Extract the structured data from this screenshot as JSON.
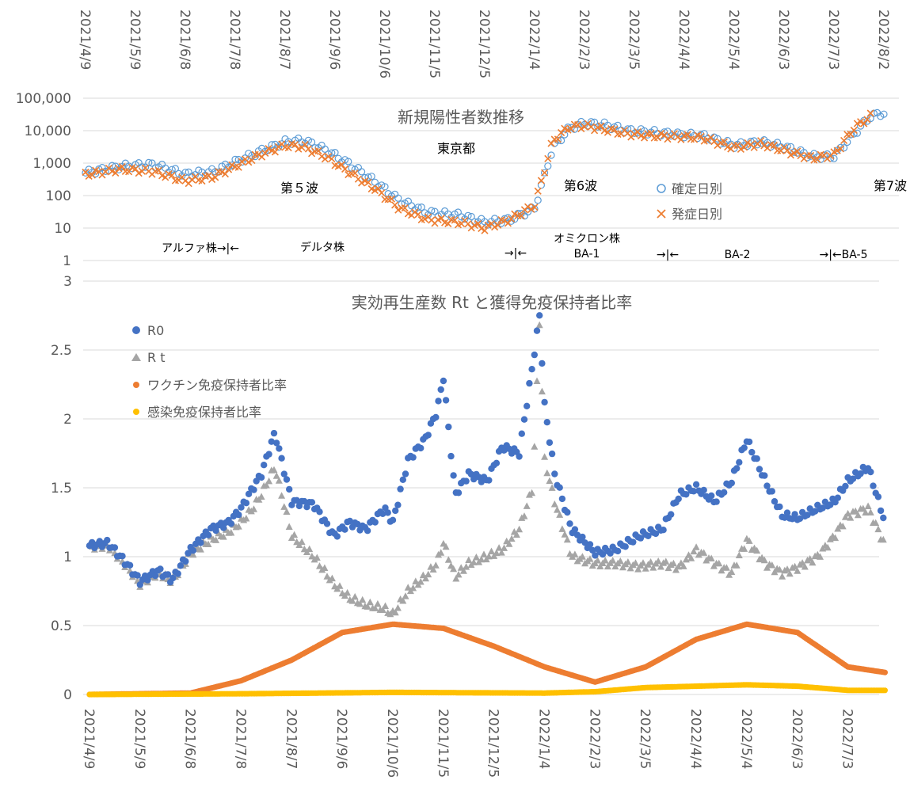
{
  "chart_data": [
    {
      "type": "scatter",
      "title": "新規陽性者数推移",
      "region_label": "東京都",
      "y_scale": "log",
      "ylim": [
        1,
        100000
      ],
      "yticks": [
        "1",
        "10",
        "100",
        "1,000",
        "10,000",
        "100,000"
      ],
      "x_tick_labels": [
        "2021/4/9",
        "2021/5/9",
        "2021/6/8",
        "2021/7/8",
        "2021/8/7",
        "2021/9/6",
        "2021/10/6",
        "2021/11/5",
        "2021/12/5",
        "2022/1/4",
        "2022/2/3",
        "2022/3/5",
        "2022/4/4",
        "2022/5/4",
        "2022/6/3",
        "2022/7/3",
        "2022/8/2"
      ],
      "wave_labels": [
        "第５波",
        "第6波",
        "第7波"
      ],
      "strain_labels": [
        "アルファ株→|←",
        "デルタ株",
        "→|←",
        "オミクロン株",
        "BA-1",
        "→|←",
        "BA-2",
        "→|←BA-5"
      ],
      "legend_position": "right",
      "grid": true,
      "series": [
        {
          "name": "確定日別",
          "marker": "open-circle",
          "color": "#5b9bd5",
          "x": [
            "2021/4/9",
            "2021/5/1",
            "2021/5/20",
            "2021/6/8",
            "2021/6/25",
            "2021/7/10",
            "2021/7/25",
            "2021/8/7",
            "2021/8/18",
            "2021/9/1",
            "2021/9/15",
            "2021/10/1",
            "2021/10/15",
            "2021/11/1",
            "2021/11/20",
            "2021/12/5",
            "2021/12/20",
            "2022/1/4",
            "2022/1/15",
            "2022/1/25",
            "2022/2/3",
            "2022/2/15",
            "2022/3/1",
            "2022/3/15",
            "2022/4/1",
            "2022/4/15",
            "2022/5/4",
            "2022/5/20",
            "2022/6/3",
            "2022/6/20",
            "2022/7/3",
            "2022/7/15",
            "2022/7/25",
            "2022/8/2"
          ],
          "y": [
            500,
            800,
            900,
            450,
            550,
            1200,
            2500,
            4500,
            5000,
            2500,
            900,
            250,
            70,
            30,
            25,
            15,
            18,
            40,
            3000,
            12000,
            17000,
            15000,
            10000,
            9000,
            7500,
            7000,
            3500,
            4500,
            3200,
            1600,
            1600,
            8000,
            28000,
            35000
          ]
        },
        {
          "name": "発症日別",
          "marker": "x",
          "color": "#ed7d31",
          "x": [
            "2021/4/9",
            "2021/5/1",
            "2021/5/20",
            "2021/6/8",
            "2021/6/25",
            "2021/7/10",
            "2021/7/25",
            "2021/8/7",
            "2021/8/18",
            "2021/9/1",
            "2021/9/15",
            "2021/10/1",
            "2021/10/15",
            "2021/11/1",
            "2021/11/20",
            "2021/12/5",
            "2021/12/20",
            "2022/1/4",
            "2022/1/15",
            "2022/1/25",
            "2022/2/3",
            "2022/2/15",
            "2022/3/1",
            "2022/3/15",
            "2022/4/1",
            "2022/4/15",
            "2022/5/4",
            "2022/5/20",
            "2022/6/3",
            "2022/6/20",
            "2022/7/3",
            "2022/7/15",
            "2022/7/25"
          ],
          "y": [
            450,
            650,
            550,
            280,
            380,
            900,
            2000,
            3500,
            3200,
            1500,
            500,
            150,
            40,
            18,
            15,
            10,
            18,
            50,
            5000,
            13000,
            14000,
            11000,
            8000,
            7000,
            6500,
            6000,
            3000,
            4000,
            2500,
            1400,
            1800,
            12000,
            28000
          ]
        }
      ]
    },
    {
      "type": "scatter",
      "title": "実効再生産数 Rt と獲得免疫保持者比率",
      "ylim": [
        0,
        3
      ],
      "yticks": [
        "0",
        "0.5",
        "1",
        "1.5",
        "2",
        "2.5",
        "3"
      ],
      "x_tick_labels": [
        "2021/4/9",
        "2021/5/9",
        "2021/6/8",
        "2021/7/8",
        "2021/8/7",
        "2021/9/6",
        "2021/10/6",
        "2021/11/5",
        "2021/12/5",
        "2022/1/4",
        "2022/2/3",
        "2022/3/5",
        "2022/4/4",
        "2022/5/4",
        "2022/6/3",
        "2022/7/3"
      ],
      "legend_position": "top-left",
      "grid": true,
      "series": [
        {
          "name": "R0",
          "marker": "circle",
          "color": "#4472c4",
          "x": [
            "2021/4/9",
            "2021/4/20",
            "2021/5/1",
            "2021/5/9",
            "2021/5/20",
            "2021/5/28",
            "2021/6/8",
            "2021/6/20",
            "2021/7/1",
            "2021/7/8",
            "2021/7/15",
            "2021/7/20",
            "2021/7/28",
            "2021/8/7",
            "2021/8/20",
            "2021/9/1",
            "2021/9/10",
            "2021/9/20",
            "2021/10/1",
            "2021/10/6",
            "2021/10/15",
            "2021/10/25",
            "2021/11/1",
            "2021/11/5",
            "2021/11/12",
            "2021/11/20",
            "2021/12/1",
            "2021/12/10",
            "2021/12/20",
            "2021/12/28",
            "2022/1/1",
            "2022/1/4",
            "2022/1/10",
            "2022/1/20",
            "2022/2/3",
            "2022/2/15",
            "2022/3/1",
            "2022/3/15",
            "2022/3/25",
            "2022/4/4",
            "2022/4/15",
            "2022/4/25",
            "2022/5/4",
            "2022/5/15",
            "2022/5/25",
            "2022/6/3",
            "2022/6/15",
            "2022/6/25",
            "2022/7/3",
            "2022/7/15",
            "2022/7/25"
          ],
          "y": [
            1.08,
            1.1,
            0.95,
            0.82,
            0.9,
            0.83,
            1.05,
            1.2,
            1.25,
            1.35,
            1.5,
            1.6,
            1.9,
            1.4,
            1.38,
            1.15,
            1.25,
            1.2,
            1.35,
            1.25,
            1.7,
            1.85,
            2.05,
            2.3,
            1.45,
            1.6,
            1.55,
            1.8,
            1.75,
            2.4,
            2.75,
            2.1,
            1.6,
            1.2,
            1.03,
            1.05,
            1.15,
            1.2,
            1.45,
            1.5,
            1.4,
            1.55,
            1.85,
            1.55,
            1.3,
            1.28,
            1.35,
            1.4,
            1.55,
            1.65,
            1.25
          ]
        },
        {
          "name": "R t",
          "marker": "triangle",
          "color": "#a5a5a5",
          "x": [
            "2021/4/9",
            "2021/4/20",
            "2021/5/1",
            "2021/5/9",
            "2021/5/20",
            "2021/5/28",
            "2021/6/8",
            "2021/6/20",
            "2021/7/1",
            "2021/7/8",
            "2021/7/15",
            "2021/7/20",
            "2021/7/28",
            "2021/8/7",
            "2021/8/20",
            "2021/9/1",
            "2021/9/10",
            "2021/9/20",
            "2021/10/1",
            "2021/10/6",
            "2021/10/15",
            "2021/10/25",
            "2021/11/1",
            "2021/11/5",
            "2021/11/12",
            "2021/11/20",
            "2021/12/1",
            "2021/12/10",
            "2021/12/20",
            "2021/12/28",
            "2022/1/1",
            "2022/1/4",
            "2022/1/10",
            "2022/1/20",
            "2022/2/3",
            "2022/2/15",
            "2022/3/1",
            "2022/3/15",
            "2022/3/25",
            "2022/4/4",
            "2022/4/15",
            "2022/4/25",
            "2022/5/4",
            "2022/5/15",
            "2022/5/25",
            "2022/6/3",
            "2022/6/15",
            "2022/6/25",
            "2022/7/3",
            "2022/7/15",
            "2022/7/25"
          ],
          "y": [
            1.07,
            1.08,
            0.93,
            0.8,
            0.88,
            0.82,
            1.02,
            1.12,
            1.18,
            1.25,
            1.35,
            1.45,
            1.65,
            1.15,
            1.0,
            0.8,
            0.7,
            0.65,
            0.62,
            0.58,
            0.75,
            0.85,
            0.95,
            1.1,
            0.85,
            0.95,
            1.0,
            1.05,
            1.2,
            1.5,
            2.7,
            1.7,
            1.4,
            1.0,
            0.95,
            0.95,
            0.93,
            0.95,
            0.92,
            1.05,
            0.95,
            0.88,
            1.12,
            0.95,
            0.88,
            0.92,
            1.0,
            1.15,
            1.3,
            1.35,
            1.08
          ]
        },
        {
          "name": "ワクチン免疫保持者比率",
          "marker": "circle",
          "color": "#ed7d31",
          "x": [
            "2021/4/9",
            "2021/6/8",
            "2021/7/8",
            "2021/8/7",
            "2021/9/6",
            "2021/10/6",
            "2021/11/5",
            "2021/12/5",
            "2022/1/4",
            "2022/2/3",
            "2022/3/5",
            "2022/4/4",
            "2022/5/4",
            "2022/6/3",
            "2022/7/3",
            "2022/7/25"
          ],
          "y": [
            0.0,
            0.01,
            0.1,
            0.25,
            0.45,
            0.51,
            0.48,
            0.35,
            0.2,
            0.09,
            0.2,
            0.4,
            0.51,
            0.45,
            0.2,
            0.16
          ]
        },
        {
          "name": "感染免疫保持者比率",
          "marker": "circle",
          "color": "#ffc000",
          "x": [
            "2021/4/9",
            "2021/7/8",
            "2021/10/6",
            "2022/1/4",
            "2022/2/3",
            "2022/3/5",
            "2022/4/4",
            "2022/5/4",
            "2022/6/3",
            "2022/7/3",
            "2022/7/25"
          ],
          "y": [
            0.0,
            0.005,
            0.015,
            0.01,
            0.02,
            0.05,
            0.06,
            0.07,
            0.06,
            0.03,
            0.03
          ]
        }
      ]
    }
  ],
  "colors": {
    "blue_r0": "#4472c4",
    "gray_rt": "#a5a5a5",
    "orange": "#ed7d31",
    "yellow": "#ffc000",
    "open_blue": "#5b9bd5"
  }
}
